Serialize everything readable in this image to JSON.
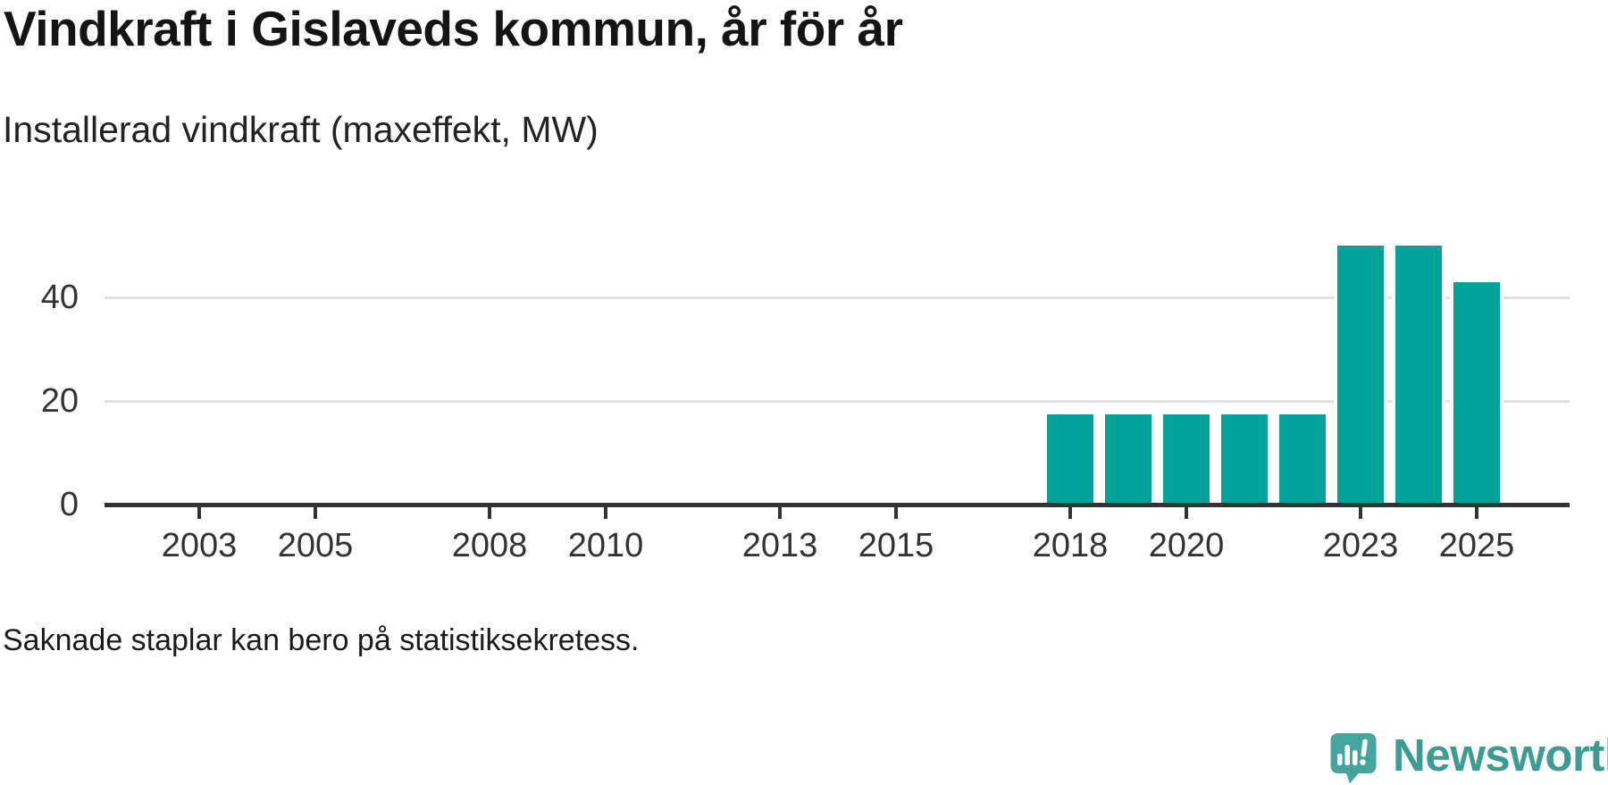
{
  "header": {
    "title": "Vindkraft i Gislaveds kommun, år för år",
    "subtitle": "Installerad vindkraft (maxeffekt, MW)"
  },
  "footnote": "Saknade staplar kan bero på statistiksekretess.",
  "logo": {
    "text": "Newsworthy",
    "icon": "speech-bubble-bar-chart-icon"
  },
  "colors": {
    "bar": "#00a39a",
    "grid": "#e0e0e0",
    "axis": "#333333",
    "tick_label": "#333333",
    "title_text": "#141414",
    "logo_icon": "#45a49d",
    "logo_text": "#3e9b94"
  },
  "chart_data": {
    "type": "bar",
    "title": "Vindkraft i Gislaveds kommun, år för år",
    "subtitle": "Installerad vindkraft (maxeffekt, MW)",
    "xlabel": "",
    "ylabel": "Installerad vindkraft (maxeffekt, MW)",
    "unit": "MW",
    "grid": "horizontal",
    "legend": "none",
    "note": "Saknade staplar kan bero på statistiksekretess.",
    "x_axis": {
      "domain": [
        2001.4,
        2026.6
      ],
      "tick_years": [
        2003,
        2005,
        2008,
        2010,
        2013,
        2015,
        2018,
        2020,
        2023,
        2025
      ]
    },
    "y_axis": {
      "ticks": [
        0,
        20,
        40
      ],
      "ylim": [
        0,
        52
      ]
    },
    "series": [
      {
        "name": "Installerad vindkraft (maxeffekt, MW)",
        "points": [
          {
            "year": 2018,
            "value": 17.5
          },
          {
            "year": 2019,
            "value": 17.5
          },
          {
            "year": 2020,
            "value": 17.5
          },
          {
            "year": 2021,
            "value": 17.5
          },
          {
            "year": 2022,
            "value": 17.5
          },
          {
            "year": 2023,
            "value": 50
          },
          {
            "year": 2024,
            "value": 50
          },
          {
            "year": 2025,
            "value": 43
          }
        ]
      }
    ]
  }
}
